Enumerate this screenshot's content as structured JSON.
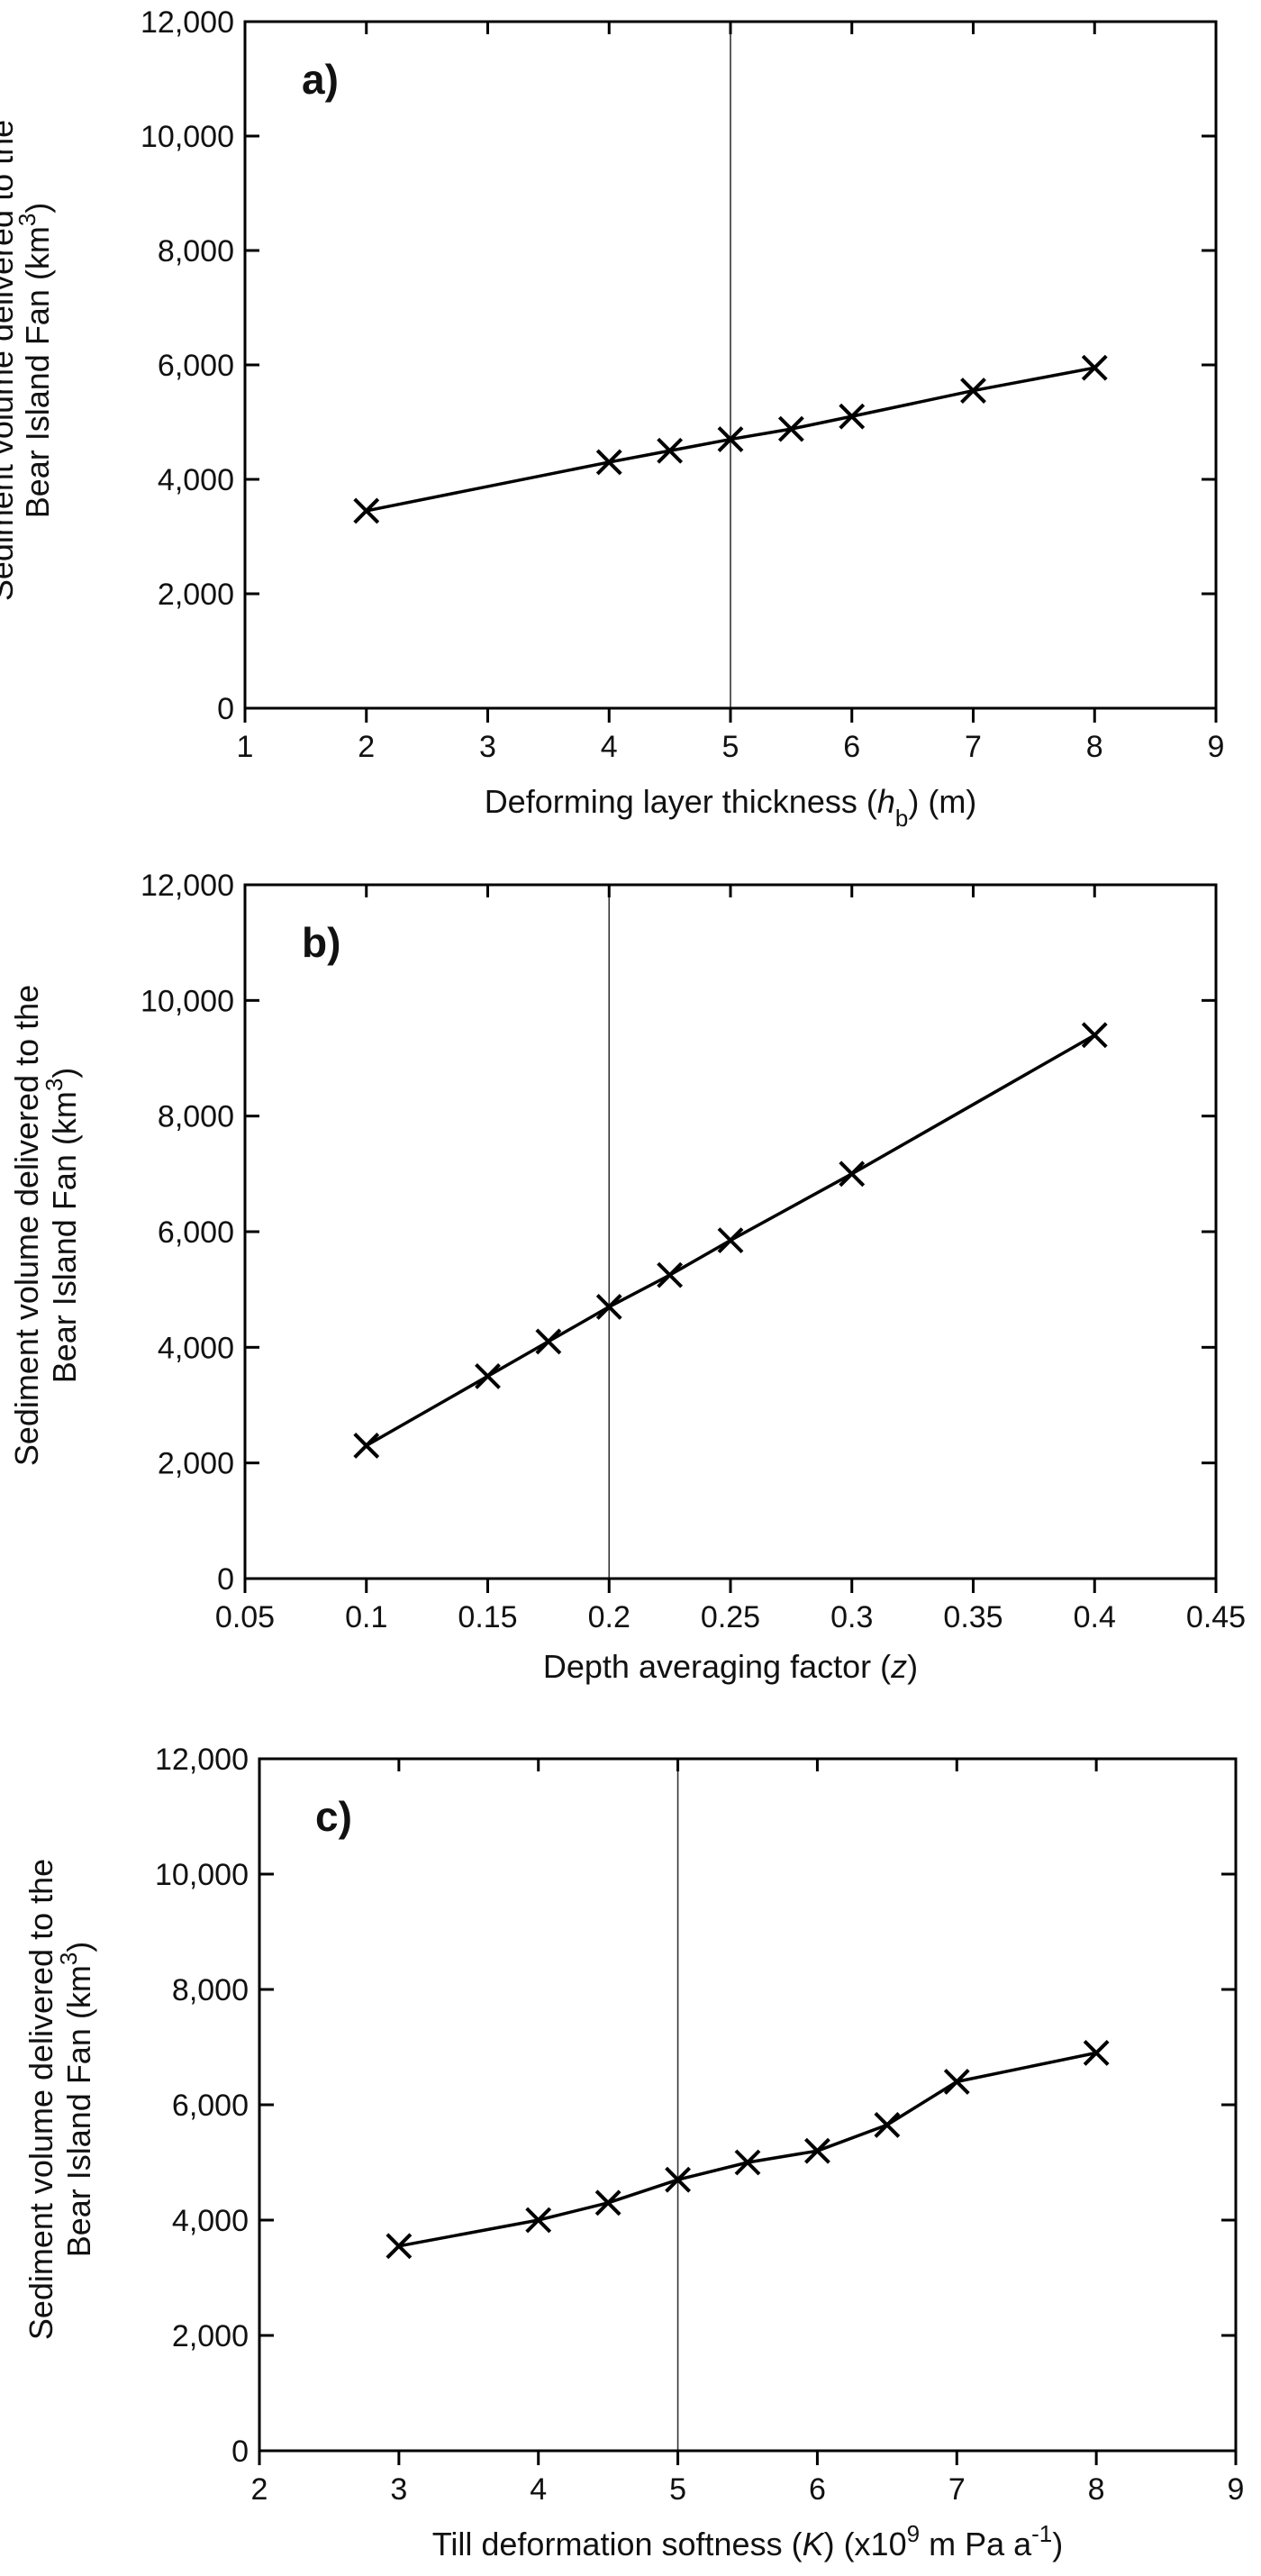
{
  "chart_data": [
    {
      "type": "line",
      "panel_label": "a)",
      "xlabel": "Deforming layer thickness (hb) (m)",
      "xlabel_parts": [
        {
          "text": "Deforming layer thickness ("
        },
        {
          "text": "h",
          "italic": true
        },
        {
          "text": "b",
          "sub": true
        },
        {
          "text": ") (m)"
        }
      ],
      "ylabel_lines": [
        "Sediment volume delivered to the",
        "Bear Island Fan (km3)"
      ],
      "xlim": [
        1,
        9
      ],
      "ylim": [
        0,
        12000
      ],
      "xticks": [
        1,
        2,
        3,
        4,
        5,
        6,
        7,
        8,
        9
      ],
      "xtick_labels": [
        "1",
        "2",
        "3",
        "4",
        "5",
        "6",
        "7",
        "8",
        "9"
      ],
      "yticks": [
        0,
        2000,
        4000,
        6000,
        8000,
        10000,
        12000
      ],
      "ytick_labels": [
        "0",
        "2,000",
        "4,000",
        "6,000",
        "8,000",
        "10,000",
        "12,000"
      ],
      "reference_line_x": 5,
      "series": [
        {
          "x": [
            2,
            4,
            4.5,
            5,
            5.5,
            6,
            7,
            8
          ],
          "y": [
            3450,
            4300,
            4500,
            4700,
            4880,
            5100,
            5550,
            5950
          ]
        }
      ]
    },
    {
      "type": "line",
      "panel_label": "b)",
      "xlabel": "Depth averaging factor (z)",
      "xlabel_parts": [
        {
          "text": "Depth averaging factor ("
        },
        {
          "text": "z",
          "italic": true
        },
        {
          "text": ")"
        }
      ],
      "ylabel_lines": [
        "Sediment volume delivered to the",
        "Bear Island Fan (km3)"
      ],
      "xlim": [
        0.05,
        0.45
      ],
      "ylim": [
        0,
        12000
      ],
      "xticks": [
        0.05,
        0.1,
        0.15,
        0.2,
        0.25,
        0.3,
        0.35,
        0.4,
        0.45
      ],
      "xtick_labels": [
        "0.05",
        "0.1",
        "0.15",
        "0.2",
        "0.25",
        "0.3",
        "0.35",
        "0.4",
        "0.45"
      ],
      "yticks": [
        0,
        2000,
        4000,
        6000,
        8000,
        10000,
        12000
      ],
      "ytick_labels": [
        "0",
        "2,000",
        "4,000",
        "6,000",
        "8,000",
        "10,000",
        "12,000"
      ],
      "reference_line_x": 0.2,
      "series": [
        {
          "x": [
            0.1,
            0.15,
            0.175,
            0.2,
            0.225,
            0.25,
            0.3,
            0.4
          ],
          "y": [
            2300,
            3500,
            4100,
            4700,
            5250,
            5850,
            7000,
            9400
          ]
        }
      ]
    },
    {
      "type": "line",
      "panel_label": "c)",
      "xlabel": "Till deformation softness (K) (x10^9 m Pa a^-1)",
      "xlabel_parts": [
        {
          "text": "Till deformation softness ("
        },
        {
          "text": "K",
          "italic": true
        },
        {
          "text": ") (x10"
        },
        {
          "text": "9",
          "sup": true
        },
        {
          "text": " m Pa a"
        },
        {
          "text": "-1",
          "sup": true
        },
        {
          "text": ")"
        }
      ],
      "ylabel_lines": [
        "Sediment volume delivered to the",
        "Bear Island Fan (km3)"
      ],
      "xlim": [
        2,
        9
      ],
      "ylim": [
        0,
        12000
      ],
      "xticks": [
        2,
        3,
        4,
        5,
        6,
        7,
        8,
        9
      ],
      "xtick_labels": [
        "2",
        "3",
        "4",
        "5",
        "6",
        "7",
        "8",
        "9"
      ],
      "yticks": [
        0,
        2000,
        4000,
        6000,
        8000,
        10000,
        12000
      ],
      "ytick_labels": [
        "0",
        "2,000",
        "4,000",
        "6,000",
        "8,000",
        "10,000",
        "12,000"
      ],
      "reference_line_x": 5,
      "series": [
        {
          "x": [
            3,
            4,
            4.5,
            5,
            5.5,
            6,
            6.5,
            7,
            8
          ],
          "y": [
            3550,
            4000,
            4300,
            4700,
            5000,
            5200,
            5650,
            6400,
            6900
          ]
        }
      ]
    }
  ]
}
